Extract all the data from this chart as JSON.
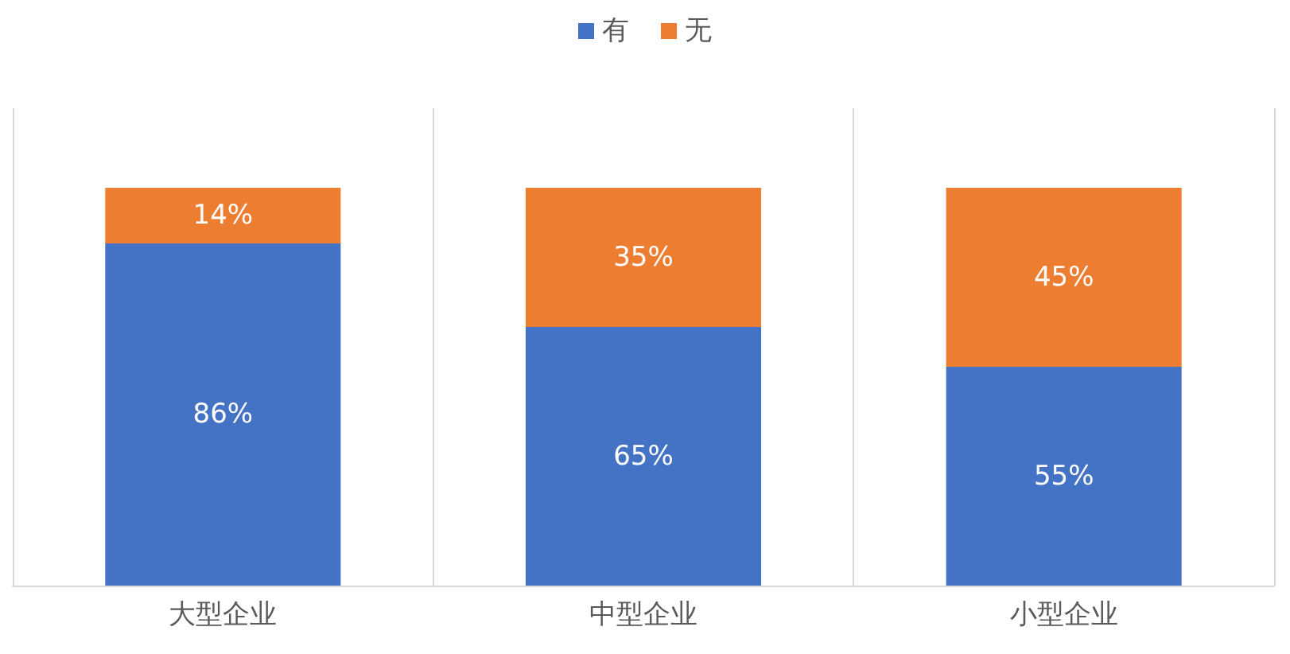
{
  "chart_data": {
    "type": "bar",
    "stacked": true,
    "categories": [
      "大型企业",
      "中型企业",
      "小型企业"
    ],
    "series": [
      {
        "name": "有",
        "color": "#4472c4",
        "values": [
          86,
          65,
          55
        ],
        "value_labels": [
          "86%",
          "65%",
          "55%"
        ]
      },
      {
        "name": "无",
        "color": "#ed7d31",
        "values": [
          14,
          35,
          45
        ],
        "value_labels": [
          "14%",
          "35%",
          "45%"
        ]
      }
    ],
    "grid": "x",
    "legend": "top",
    "tick_labels": "x"
  }
}
